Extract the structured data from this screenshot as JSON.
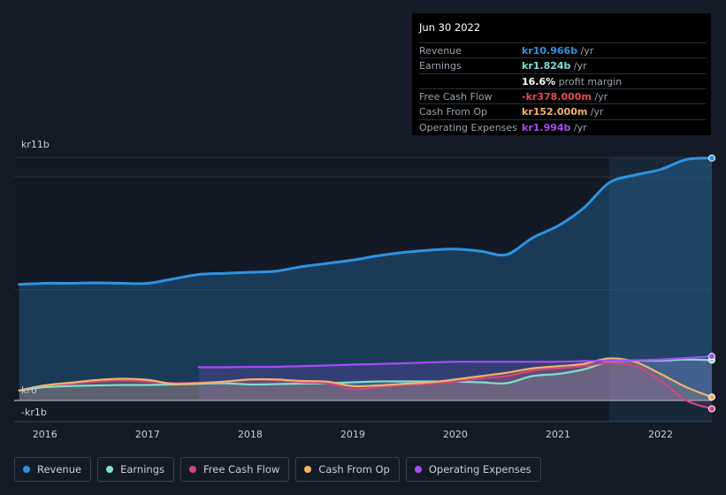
{
  "tooltip": {
    "date": "Jun 30 2022",
    "rows": [
      {
        "label": "Revenue",
        "value": "kr10.966b",
        "unit": "/yr",
        "color": "#2e93e0"
      },
      {
        "label": "Earnings",
        "value": "kr1.824b",
        "unit": "/yr",
        "color": "#7ee0d1"
      },
      {
        "label": "",
        "value": "16.6%",
        "unit": "profit margin",
        "color": "#ffffff"
      },
      {
        "label": "Free Cash Flow",
        "value": "-kr378.000m",
        "unit": "/yr",
        "color": "#e8465a"
      },
      {
        "label": "Cash From Op",
        "value": "kr152.000m",
        "unit": "/yr",
        "color": "#f0b36b"
      },
      {
        "label": "Operating Expenses",
        "value": "kr1.994b",
        "unit": "/yr",
        "color": "#a64cf2"
      }
    ]
  },
  "legend": [
    {
      "label": "Revenue",
      "color": "#2e93e0"
    },
    {
      "label": "Earnings",
      "color": "#7ee0d1"
    },
    {
      "label": "Free Cash Flow",
      "color": "#d0457e"
    },
    {
      "label": "Cash From Op",
      "color": "#f0b36b"
    },
    {
      "label": "Operating Expenses",
      "color": "#a64cf2"
    }
  ],
  "chart_data": {
    "type": "line",
    "y_tick_labels": [
      "kr11b",
      "kr0",
      "-kr1b"
    ],
    "ylim": [
      -1,
      11
    ],
    "xlim": [
      2015.7,
      2022.5
    ],
    "x_tick_labels": [
      "2016",
      "2017",
      "2018",
      "2019",
      "2020",
      "2021",
      "2022"
    ],
    "x_ticks": [
      2016,
      2017,
      2018,
      2019,
      2020,
      2021,
      2022
    ],
    "forecast_shade_start": 2021.5,
    "series": [
      {
        "name": "Revenue",
        "color": "#2e93e0",
        "x": [
          2015.75,
          2016.0,
          2016.25,
          2016.5,
          2016.75,
          2017.0,
          2017.25,
          2017.5,
          2017.75,
          2018.0,
          2018.25,
          2018.5,
          2018.75,
          2019.0,
          2019.25,
          2019.5,
          2019.75,
          2020.0,
          2020.25,
          2020.5,
          2020.75,
          2021.0,
          2021.25,
          2021.5,
          2021.75,
          2022.0,
          2022.25,
          2022.5
        ],
        "y": [
          5.25,
          5.3,
          5.3,
          5.32,
          5.3,
          5.3,
          5.5,
          5.7,
          5.75,
          5.8,
          5.85,
          6.05,
          6.2,
          6.35,
          6.55,
          6.7,
          6.8,
          6.85,
          6.75,
          6.6,
          7.35,
          7.9,
          8.7,
          9.85,
          10.2,
          10.45,
          10.9,
          10.966
        ]
      },
      {
        "name": "Earnings",
        "color": "#7ee0d1",
        "x": [
          2015.75,
          2016.0,
          2016.25,
          2016.5,
          2016.75,
          2017.0,
          2017.25,
          2017.5,
          2017.75,
          2018.0,
          2018.25,
          2018.5,
          2018.75,
          2019.0,
          2019.25,
          2019.5,
          2019.75,
          2020.0,
          2020.25,
          2020.5,
          2020.75,
          2021.0,
          2021.25,
          2021.5,
          2021.75,
          2022.0,
          2022.25,
          2022.5
        ],
        "y": [
          0.45,
          0.6,
          0.65,
          0.68,
          0.7,
          0.7,
          0.72,
          0.75,
          0.78,
          0.72,
          0.74,
          0.76,
          0.78,
          0.82,
          0.86,
          0.86,
          0.86,
          0.85,
          0.82,
          0.78,
          1.1,
          1.2,
          1.4,
          1.75,
          1.8,
          1.8,
          1.85,
          1.824
        ]
      },
      {
        "name": "Free Cash Flow",
        "color": "#d0457e",
        "x": [
          2015.75,
          2016.0,
          2016.25,
          2016.5,
          2016.75,
          2017.0,
          2017.25,
          2017.5,
          2017.75,
          2018.0,
          2018.25,
          2018.5,
          2018.75,
          2019.0,
          2019.25,
          2019.5,
          2019.75,
          2020.0,
          2020.25,
          2020.5,
          2020.75,
          2021.0,
          2021.25,
          2021.5,
          2021.75,
          2022.0,
          2022.25,
          2022.5
        ],
        "y": [
          0.45,
          0.68,
          0.75,
          0.85,
          0.9,
          0.85,
          0.78,
          0.8,
          0.85,
          0.95,
          0.92,
          0.82,
          0.78,
          0.5,
          0.6,
          0.7,
          0.75,
          0.85,
          1.0,
          1.1,
          1.35,
          1.45,
          1.55,
          1.7,
          1.55,
          0.9,
          0.0,
          -0.378
        ]
      },
      {
        "name": "Cash From Op",
        "color": "#f0b36b",
        "x": [
          2015.75,
          2016.0,
          2016.25,
          2016.5,
          2016.75,
          2017.0,
          2017.25,
          2017.5,
          2017.75,
          2018.0,
          2018.25,
          2018.5,
          2018.75,
          2019.0,
          2019.25,
          2019.5,
          2019.75,
          2020.0,
          2020.25,
          2020.5,
          2020.75,
          2021.0,
          2021.25,
          2021.5,
          2021.75,
          2022.0,
          2022.25,
          2022.5
        ],
        "y": [
          0.45,
          0.68,
          0.8,
          0.92,
          0.98,
          0.93,
          0.75,
          0.78,
          0.85,
          0.95,
          0.95,
          0.88,
          0.85,
          0.65,
          0.68,
          0.75,
          0.82,
          0.95,
          1.1,
          1.25,
          1.45,
          1.55,
          1.65,
          1.9,
          1.75,
          1.2,
          0.6,
          0.152
        ]
      },
      {
        "name": "Operating Expenses",
        "color": "#a64cf2",
        "x": [
          2017.5,
          2017.75,
          2018.0,
          2018.25,
          2018.5,
          2018.75,
          2019.0,
          2019.25,
          2019.5,
          2019.75,
          2020.0,
          2020.25,
          2020.5,
          2020.75,
          2021.0,
          2021.25,
          2021.5,
          2021.75,
          2022.0,
          2022.25,
          2022.5
        ],
        "y": [
          1.5,
          1.5,
          1.52,
          1.52,
          1.55,
          1.58,
          1.62,
          1.65,
          1.68,
          1.72,
          1.75,
          1.75,
          1.75,
          1.75,
          1.75,
          1.78,
          1.8,
          1.82,
          1.85,
          1.92,
          1.994
        ]
      }
    ]
  }
}
